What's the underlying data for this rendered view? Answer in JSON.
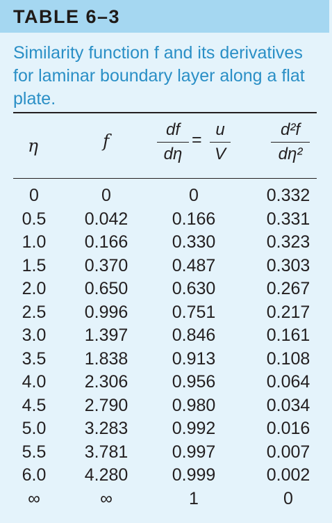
{
  "table_label": "TABLE 6–3",
  "caption": "Similarity function f and its derivatives for laminar boundary layer along a flat plate.",
  "headers": {
    "eta": "η",
    "f": "f",
    "df_num": "df",
    "df_den": "dη",
    "equals": "=",
    "u_num": "u",
    "u_den": "V",
    "d2f_num": "d²f",
    "d2f_den": "dη²"
  },
  "rows": [
    [
      "0",
      "0",
      "0",
      "0.332"
    ],
    [
      "0.5",
      "0.042",
      "0.166",
      "0.331"
    ],
    [
      "1.0",
      "0.166",
      "0.330",
      "0.323"
    ],
    [
      "1.5",
      "0.370",
      "0.487",
      "0.303"
    ],
    [
      "2.0",
      "0.650",
      "0.630",
      "0.267"
    ],
    [
      "2.5",
      "0.996",
      "0.751",
      "0.217"
    ],
    [
      "3.0",
      "1.397",
      "0.846",
      "0.161"
    ],
    [
      "3.5",
      "1.838",
      "0.913",
      "0.108"
    ],
    [
      "4.0",
      "2.306",
      "0.956",
      "0.064"
    ],
    [
      "4.5",
      "2.790",
      "0.980",
      "0.034"
    ],
    [
      "5.0",
      "3.283",
      "0.992",
      "0.016"
    ],
    [
      "5.5",
      "3.781",
      "0.997",
      "0.007"
    ],
    [
      "6.0",
      "4.280",
      "0.999",
      "0.002"
    ],
    [
      "∞",
      "∞",
      "1",
      "0"
    ]
  ]
}
